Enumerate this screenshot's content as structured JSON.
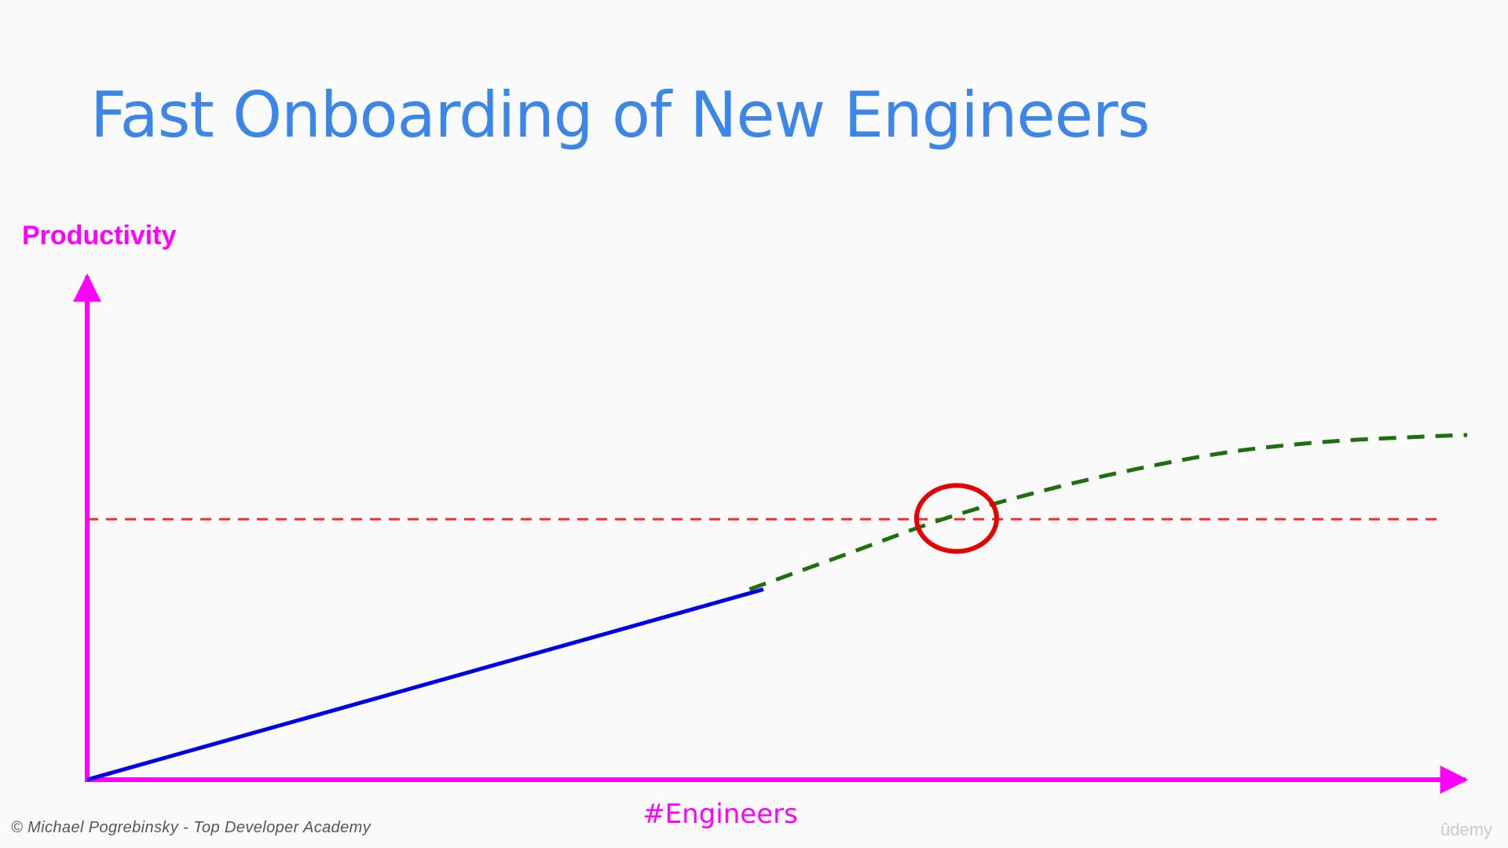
{
  "slide": {
    "title": "Fast Onboarding of New Engineers"
  },
  "footer": {
    "credit": "© Michael Pogrebinsky - Top Developer Academy",
    "brand": "ûdemy"
  },
  "colors": {
    "title": "#3b86e6",
    "axes": "#ff00ff",
    "actual_line": "#0000e6",
    "projected_line": "#1f6e0f",
    "threshold_line": "#ff2a2a",
    "highlight_circle": "#e60000"
  },
  "chart_data": {
    "type": "line",
    "title": "Fast Onboarding of New Engineers",
    "xlabel": "#Engineers",
    "ylabel": "Productivity",
    "xlim": [
      0,
      100
    ],
    "ylim": [
      0,
      100
    ],
    "grid": false,
    "legend": "none",
    "tick_labels": false,
    "series": [
      {
        "style": "solid",
        "color": "#0000e6",
        "x": [
          0,
          49
        ],
        "y": [
          0,
          38
        ]
      },
      {
        "style": "dashed",
        "color": "#1f6e0f",
        "x": [
          48,
          55,
          62,
          69,
          76,
          83,
          90,
          97,
          100
        ],
        "y": [
          38,
          45,
          52,
          57.5,
          62,
          65.5,
          67.5,
          68.5,
          68.8
        ]
      }
    ],
    "reference_lines": [
      {
        "orientation": "horizontal",
        "style": "dashed",
        "color": "#ff2a2a",
        "y": 52,
        "x_range": [
          0,
          98
        ]
      }
    ],
    "annotations": [
      {
        "type": "circle",
        "color": "#e60000",
        "x": 63,
        "y": 52
      }
    ]
  }
}
